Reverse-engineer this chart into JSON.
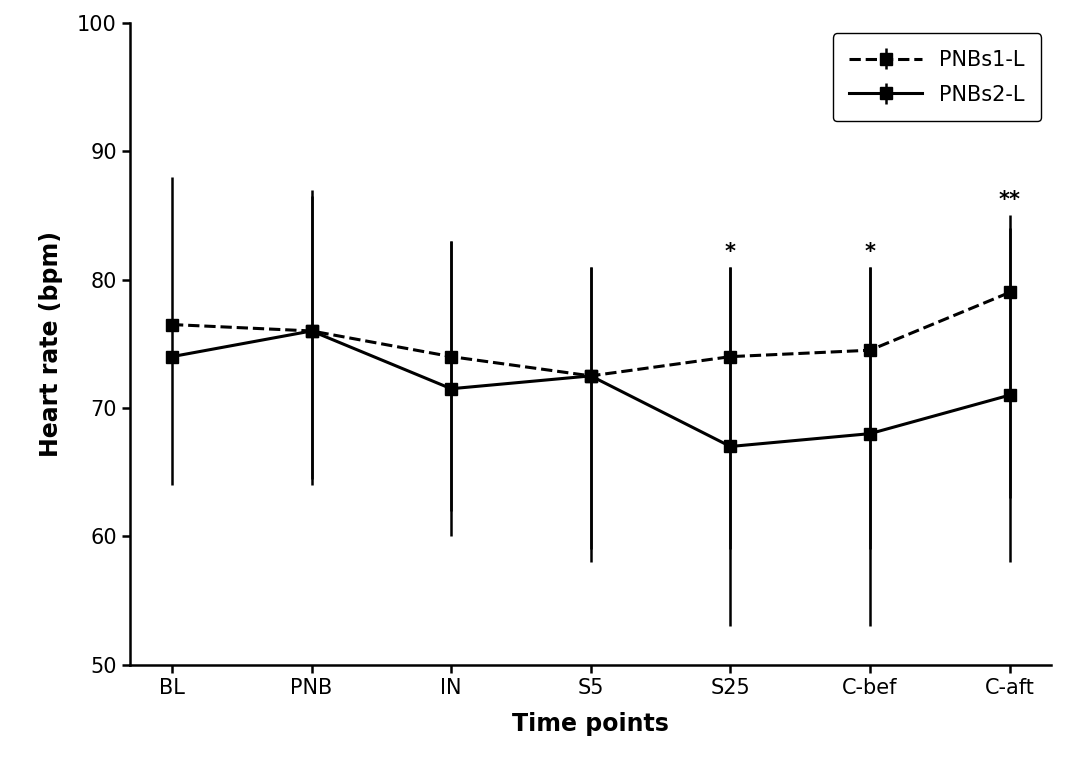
{
  "time_points": [
    "BL",
    "PNB",
    "IN",
    "S5",
    "S25",
    "C-bef",
    "C-aft"
  ],
  "pnbs1_mean": [
    76.5,
    76.0,
    74.0,
    72.5,
    74.0,
    74.5,
    79.0
  ],
  "pnbs1_err_upper": [
    88.0,
    86.5,
    83.0,
    81.0,
    81.0,
    81.0,
    85.0
  ],
  "pnbs1_err_lower": [
    65.0,
    64.5,
    62.0,
    59.0,
    59.0,
    59.0,
    63.0
  ],
  "pnbs2_mean": [
    74.0,
    76.0,
    71.5,
    72.5,
    67.0,
    68.0,
    71.0
  ],
  "pnbs2_err_upper": [
    88.0,
    87.0,
    83.0,
    81.0,
    81.0,
    81.0,
    84.0
  ],
  "pnbs2_err_lower": [
    64.0,
    64.0,
    60.0,
    58.0,
    53.0,
    53.0,
    58.0
  ],
  "pnbs1_has_errbar": [
    false,
    true,
    true,
    true,
    true,
    true,
    true
  ],
  "pnbs2_has_errbar": [
    true,
    true,
    true,
    true,
    true,
    true,
    true
  ],
  "ylabel": "Heart rate (bpm)",
  "xlabel": "Time points",
  "ylim_min": 50,
  "ylim_max": 100,
  "yticks": [
    50,
    60,
    70,
    80,
    90,
    100
  ],
  "legend_labels": [
    "PNBs1-L",
    "PNBs2-L"
  ],
  "annotations": {
    "S25": "*",
    "C-bef": "*",
    "C-aft": "**"
  },
  "line_color": "#000000",
  "marker_size": 9,
  "linewidth": 2.2,
  "errbar_linewidth": 1.8,
  "capsize": 0
}
